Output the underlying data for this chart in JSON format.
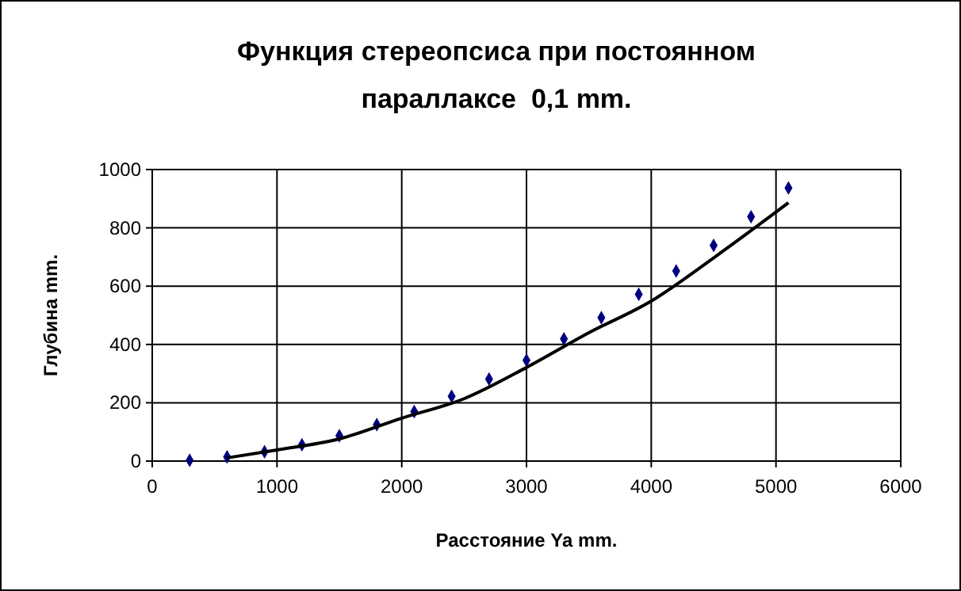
{
  "chart_data": {
    "type": "scatter",
    "title": "Функция стереопсиса при постоянном параллаксе  0,1 mm.",
    "xlabel": "Расстояние Ya mm.",
    "ylabel": "Глубина mm.",
    "xlim": [
      0,
      6000
    ],
    "xticks": [
      0,
      1000,
      2000,
      3000,
      4000,
      5000,
      6000
    ],
    "ylim": [
      0,
      1000
    ],
    "yticks": [
      0,
      200,
      400,
      600,
      800,
      1000
    ],
    "grid": true,
    "series": [
      {
        "color": "#000080",
        "marker": "diamond",
        "x": [
          300,
          600,
          900,
          1200,
          1500,
          1800,
          2100,
          2400,
          2700,
          3000,
          3300,
          3600,
          3900,
          4200,
          4500,
          4800,
          5100
        ],
        "values": [
          3,
          14,
          32,
          56,
          87,
          125,
          170,
          222,
          281,
          346,
          419,
          492,
          572,
          652,
          740,
          838,
          937
        ]
      },
      {
        "type": "line",
        "color": "#000000",
        "marker": "none",
        "x": [
          600,
          1000,
          1500,
          2000,
          2500,
          3000,
          3500,
          4000,
          4500,
          5100
        ],
        "values": [
          11,
          38,
          76,
          147,
          214,
          321,
          440,
          549,
          697,
          886
        ]
      }
    ]
  }
}
